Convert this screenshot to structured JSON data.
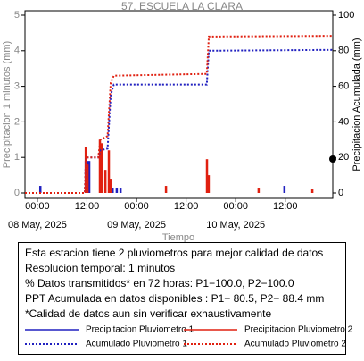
{
  "chart_data": {
    "type": "combo",
    "title": "57. ESCUELA LA CLARA",
    "y_label": "Precipitacion 1 minutos (mm)",
    "y2_label": "Precipitacion Acumulada (mm)",
    "x_label": "Tiempo",
    "xlim": [
      "2025-05-07T21:00",
      "2025-05-10T23:30"
    ],
    "xticks": [
      {
        "value": "2025-05-08T00:00",
        "label": "00:00"
      },
      {
        "value": "2025-05-08T12:00",
        "label": "12:00"
      },
      {
        "value": "2025-05-09T00:00",
        "label": "00:00"
      },
      {
        "value": "2025-05-09T12:00",
        "label": "12:00"
      },
      {
        "value": "2025-05-10T00:00",
        "label": "00:00"
      },
      {
        "value": "2025-05-10T12:00",
        "label": "12:00"
      }
    ],
    "date_ticks": [
      {
        "value": "2025-05-08T00:00",
        "label": "08 May, 2025"
      },
      {
        "value": "2025-05-09T00:00",
        "label": "09 May, 2025"
      },
      {
        "value": "2025-05-10T00:00",
        "label": "10 May, 2025"
      }
    ],
    "ylim": [
      0,
      5
    ],
    "yticks": [
      0,
      1,
      2,
      3,
      4,
      5
    ],
    "y2lim": [
      0,
      100
    ],
    "y2ticks": [
      0,
      20,
      40,
      60,
      80,
      100
    ],
    "series": [
      {
        "name": "Precipitacion Pluviometro 1",
        "type": "bar",
        "color": "#2020c0",
        "x": [
          "2025-05-08T00:40",
          "2025-05-08T11:40",
          "2025-05-08T12:05",
          "2025-05-08T12:30",
          "2025-05-08T18:10",
          "2025-05-08T19:10",
          "2025-05-08T20:05",
          "2025-05-10T11:45"
        ],
        "values": [
          0.2,
          0.9,
          0.9,
          0.9,
          0.15,
          0.15,
          0.15,
          0.2
        ]
      },
      {
        "name": "Precipitacion Pluviometro 2",
        "type": "bar",
        "color": "#e02010",
        "x": [
          "2025-05-08T11:40",
          "2025-05-08T12:05",
          "2025-05-08T15:05",
          "2025-05-08T15:30",
          "2025-05-08T16:25",
          "2025-05-08T17:15",
          "2025-05-08T17:40",
          "2025-05-09T07:05",
          "2025-05-09T17:00",
          "2025-05-09T17:25",
          "2025-05-10T05:30",
          "2025-05-10T18:30"
        ],
        "values": [
          1.3,
          0.8,
          1.5,
          1.4,
          0.65,
          1.2,
          0.4,
          0.2,
          0.95,
          0.5,
          0.15,
          0.1
        ]
      },
      {
        "name": "Acumulado Pluviometro 1",
        "type": "line",
        "axis": "y2",
        "color": "#2020c0",
        "x": [
          "2025-05-07T21:00",
          "2025-05-08T11:30",
          "2025-05-08T11:45",
          "2025-05-08T14:45",
          "2025-05-08T15:15",
          "2025-05-08T17:00",
          "2025-05-08T17:45",
          "2025-05-08T18:30",
          "2025-05-09T17:00",
          "2025-05-09T17:30",
          "2025-05-10T23:30"
        ],
        "values": [
          0,
          0,
          20,
          20,
          24,
          25,
          55,
          61,
          61,
          80,
          80.5
        ]
      },
      {
        "name": "Acumulado Pluviometro 2",
        "type": "line",
        "axis": "y2",
        "color": "#e02010",
        "x": [
          "2025-05-07T21:00",
          "2025-05-08T11:30",
          "2025-05-08T11:45",
          "2025-05-08T14:45",
          "2025-05-08T15:15",
          "2025-05-08T17:00",
          "2025-05-08T17:45",
          "2025-05-08T18:30",
          "2025-05-09T17:00",
          "2025-05-09T17:30",
          "2025-05-10T23:30"
        ],
        "values": [
          0,
          0,
          20,
          20,
          30,
          32,
          62,
          66,
          67,
          88,
          88.4
        ]
      }
    ],
    "info_lines": [
      "Esta estacion tiene 2 pluviometros para mejor calidad de datos",
      "Resolucion temporal: 1 minutos",
      "% Datos transmitidos* en 72 horas: P1−100.0, P2−100.0",
      "PPT Acumulada en datos disponibles : P1− 80.5, P2− 88.4 mm",
      "*Calidad de datos aun sin verificar exhaustivamente"
    ]
  }
}
